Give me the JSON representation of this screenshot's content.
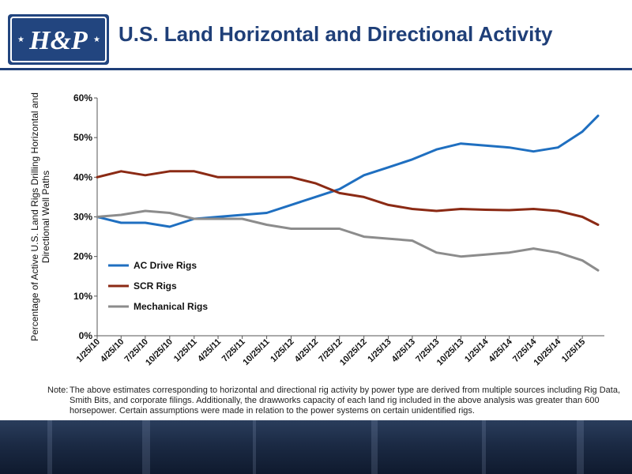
{
  "page": {
    "title": "U.S. Land Horizontal and Directional Activity",
    "logo_text": "H&P"
  },
  "note": {
    "label": "Note:",
    "text": "The above estimates corresponding to horizontal and directional rig activity by power type are derived from multiple sources including Rig Data, Smith Bits, and corporate filings.  Additionally, the drawworks capacity of each land rig included in the above analysis was greater than 600 horsepower.  Certain assumptions were made in relation to the power systems on certain unidentified rigs."
  },
  "colors": {
    "title": "#1f3f78",
    "ac_drive": "#1f6fc0",
    "scr": "#8b2a14",
    "mechanical": "#8c8c8c"
  },
  "chart_data": {
    "type": "line",
    "title": "",
    "ylabel": "Percentage of Active U.S. Land Rigs Drilling Horizontal and Directional Well Paths",
    "xlabel": "",
    "ylim": [
      0,
      60
    ],
    "ytick_labels": [
      "0%",
      "10%",
      "20%",
      "30%",
      "40%",
      "50%",
      "60%"
    ],
    "ytick_values": [
      0,
      10,
      20,
      30,
      40,
      50,
      60
    ],
    "x_dates": [
      "2010-01-25",
      "2010-04-25",
      "2010-07-25",
      "2010-10-25",
      "2011-01-25",
      "2011-04-25",
      "2011-07-25",
      "2011-10-25",
      "2012-01-25",
      "2012-04-25",
      "2012-07-25",
      "2012-10-25",
      "2013-01-25",
      "2013-04-25",
      "2013-07-25",
      "2013-10-25",
      "2014-01-25",
      "2014-04-25",
      "2014-07-25",
      "2014-10-25",
      "2015-01-25",
      "2015-03-25"
    ],
    "xtick_labels": [
      "1/25/10",
      "4/25/10",
      "7/25/10",
      "10/25/10",
      "1/25/11",
      "4/25/11",
      "7/25/11",
      "10/25/11",
      "1/25/12",
      "4/25/12",
      "7/25/12",
      "10/25/12",
      "1/25/13",
      "4/25/13",
      "7/25/13",
      "10/25/13",
      "1/25/14",
      "4/25/14",
      "7/25/14",
      "10/25/14",
      "1/25/15"
    ],
    "legend_position": "bottom-left",
    "grid": false,
    "series": [
      {
        "name": "AC Drive Rigs",
        "color": "#1f6fc0",
        "values": [
          30,
          28.5,
          28.5,
          27.5,
          29.5,
          30,
          30.5,
          31,
          33,
          35,
          37,
          40.5,
          42.5,
          44.5,
          47,
          48.5,
          48,
          47.5,
          46.5,
          47.5,
          51.5,
          55.5
        ]
      },
      {
        "name": "SCR Rigs",
        "color": "#8b2a14",
        "values": [
          40,
          41.5,
          40.5,
          41.5,
          41.5,
          40,
          40,
          40,
          40,
          38.5,
          36,
          35,
          33,
          32,
          31.5,
          32,
          31.8,
          31.7,
          32,
          31.5,
          30,
          28
        ]
      },
      {
        "name": "Mechanical Rigs",
        "color": "#8c8c8c",
        "values": [
          30,
          30.5,
          31.5,
          31,
          29.5,
          29.5,
          29.5,
          28,
          27,
          27,
          27,
          25,
          24.5,
          24,
          21,
          20,
          20.5,
          21,
          22,
          21,
          19,
          16.5
        ]
      }
    ]
  }
}
